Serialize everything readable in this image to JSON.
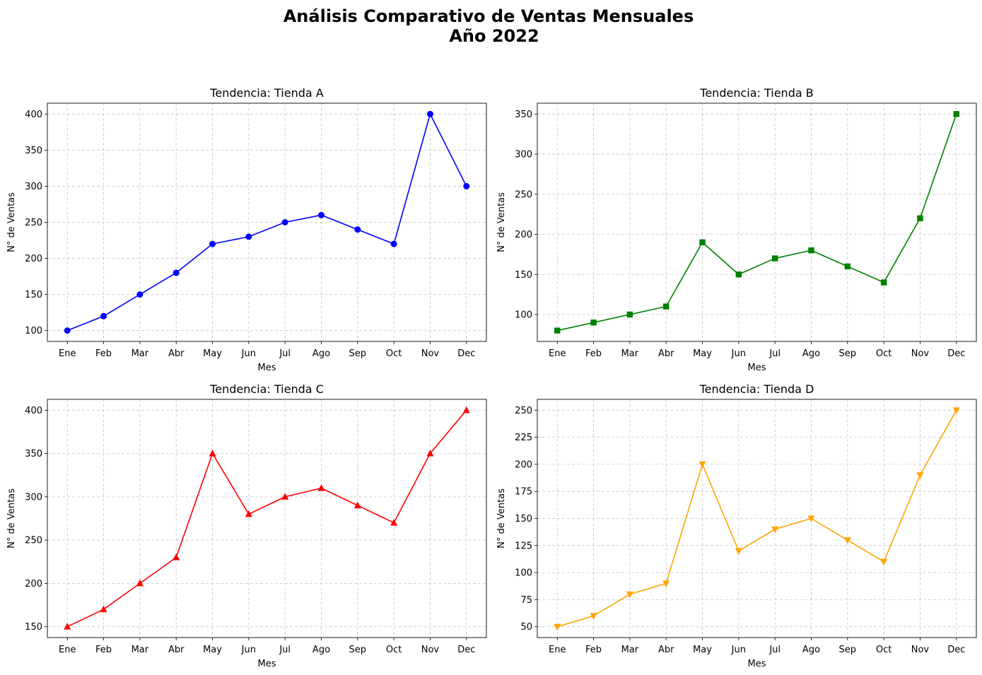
{
  "figure": {
    "suptitle_line1": "Análisis Comparativo de Ventas Mensuales",
    "suptitle_line2": "Año 2022"
  },
  "chart_data": [
    {
      "type": "line",
      "title": "Tendencia: Tienda A",
      "xlabel": "Mes",
      "ylabel": "N° de Ventas",
      "categories": [
        "Ene",
        "Feb",
        "Mar",
        "Abr",
        "May",
        "Jun",
        "Jul",
        "Ago",
        "Sep",
        "Oct",
        "Nov",
        "Dec"
      ],
      "values": [
        100,
        120,
        150,
        180,
        220,
        230,
        250,
        260,
        240,
        220,
        400,
        300
      ],
      "ylim": [
        85,
        415
      ],
      "yticks": [
        100,
        150,
        200,
        250,
        300,
        350,
        400
      ],
      "color": "#0000ff",
      "marker": "circle",
      "grid": true
    },
    {
      "type": "line",
      "title": "Tendencia: Tienda B",
      "xlabel": "Mes",
      "ylabel": "N° de Ventas",
      "categories": [
        "Ene",
        "Feb",
        "Mar",
        "Abr",
        "May",
        "Jun",
        "Jul",
        "Ago",
        "Sep",
        "Oct",
        "Nov",
        "Dec"
      ],
      "values": [
        80,
        90,
        100,
        110,
        190,
        150,
        170,
        180,
        160,
        140,
        220,
        350
      ],
      "ylim": [
        66.5,
        363.5
      ],
      "yticks": [
        100,
        150,
        200,
        250,
        300,
        350
      ],
      "color": "#008000",
      "marker": "square",
      "grid": true
    },
    {
      "type": "line",
      "title": "Tendencia: Tienda C",
      "xlabel": "Mes",
      "ylabel": "N° de Ventas",
      "categories": [
        "Ene",
        "Feb",
        "Mar",
        "Abr",
        "May",
        "Jun",
        "Jul",
        "Ago",
        "Sep",
        "Oct",
        "Nov",
        "Dec"
      ],
      "values": [
        150,
        170,
        200,
        230,
        350,
        280,
        300,
        310,
        290,
        270,
        350,
        400
      ],
      "ylim": [
        137.5,
        412.5
      ],
      "yticks": [
        150,
        200,
        250,
        300,
        350,
        400
      ],
      "color": "#ff0000",
      "marker": "triangle-up",
      "grid": true
    },
    {
      "type": "line",
      "title": "Tendencia: Tienda D",
      "xlabel": "Mes",
      "ylabel": "N° de Ventas",
      "categories": [
        "Ene",
        "Feb",
        "Mar",
        "Abr",
        "May",
        "Jun",
        "Jul",
        "Ago",
        "Sep",
        "Oct",
        "Nov",
        "Dec"
      ],
      "values": [
        50,
        60,
        80,
        90,
        200,
        120,
        140,
        150,
        130,
        110,
        190,
        250
      ],
      "ylim": [
        40,
        260
      ],
      "yticks": [
        50,
        75,
        100,
        125,
        150,
        175,
        200,
        225,
        250
      ],
      "color": "#ffa500",
      "marker": "triangle-down",
      "grid": true
    }
  ]
}
